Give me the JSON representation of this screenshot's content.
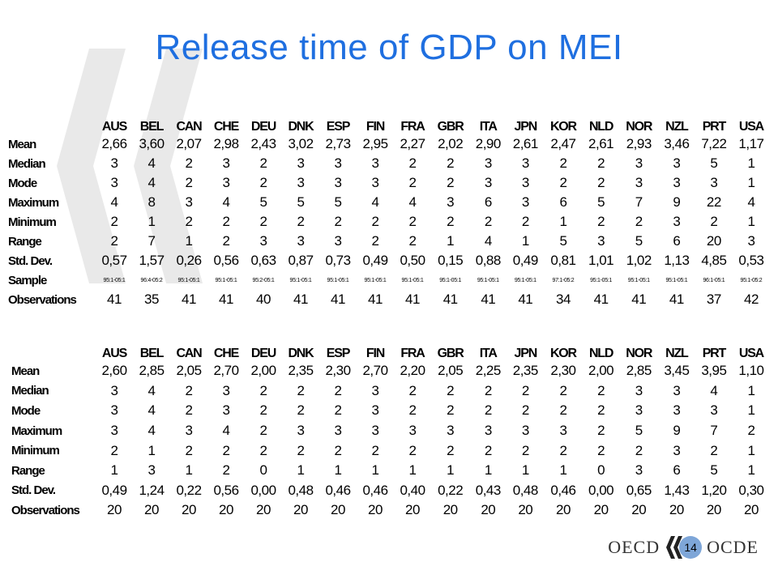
{
  "title": "Release time of GDP on MEI",
  "tables": [
    {
      "columns": [
        "AUS",
        "BEL",
        "CAN",
        "CHE",
        "DEU",
        "DNK",
        "ESP",
        "FIN",
        "FRA",
        "GBR",
        "ITA",
        "JPN",
        "KOR",
        "NLD",
        "NOR",
        "NZL",
        "PRT",
        "USA"
      ],
      "rows": [
        {
          "label": "Mean",
          "values": [
            "2,66",
            "3,60",
            "2,07",
            "2,98",
            "2,43",
            "3,02",
            "2,73",
            "2,95",
            "2,27",
            "2,02",
            "2,90",
            "2,61",
            "2,47",
            "2,61",
            "2,93",
            "3,46",
            "7,22",
            "1,17"
          ]
        },
        {
          "label": "Median",
          "values": [
            "3",
            "4",
            "2",
            "3",
            "2",
            "3",
            "3",
            "3",
            "2",
            "2",
            "3",
            "3",
            "2",
            "2",
            "3",
            "3",
            "5",
            "1"
          ]
        },
        {
          "label": "Mode",
          "values": [
            "3",
            "4",
            "2",
            "3",
            "2",
            "3",
            "3",
            "3",
            "2",
            "2",
            "3",
            "3",
            "2",
            "2",
            "3",
            "3",
            "3",
            "1"
          ]
        },
        {
          "label": "Maximum",
          "values": [
            "4",
            "8",
            "3",
            "4",
            "5",
            "5",
            "5",
            "4",
            "4",
            "3",
            "6",
            "3",
            "6",
            "5",
            "7",
            "9",
            "22",
            "4"
          ]
        },
        {
          "label": "Minimum",
          "values": [
            "2",
            "1",
            "2",
            "2",
            "2",
            "2",
            "2",
            "2",
            "2",
            "2",
            "2",
            "2",
            "1",
            "2",
            "2",
            "3",
            "2",
            "1"
          ]
        },
        {
          "label": "Range",
          "values": [
            "2",
            "7",
            "1",
            "2",
            "3",
            "3",
            "3",
            "2",
            "2",
            "1",
            "4",
            "1",
            "5",
            "3",
            "5",
            "6",
            "20",
            "3"
          ]
        },
        {
          "label": "Std. Dev.",
          "values": [
            "0,57",
            "1,57",
            "0,26",
            "0,56",
            "0,63",
            "0,87",
            "0,73",
            "0,49",
            "0,50",
            "0,15",
            "0,88",
            "0,49",
            "0,81",
            "1,01",
            "1,02",
            "1,13",
            "4,85",
            "0,53"
          ]
        },
        {
          "label": "Sample",
          "small": true,
          "values": [
            "95:1-05:1",
            "96:4-05:2",
            "95:1-05:1",
            "95:1-05:1",
            "95:2-05:1",
            "95:1-05:1",
            "95:1-05:1",
            "95:1-05:1",
            "95:1-05:1",
            "95:1-05:1",
            "95:1-05:1",
            "95:1-05:1",
            "97:1-05:2",
            "95:1-05:1",
            "95:1-05:1",
            "95:1-05:1",
            "96:1-05:1",
            "95:1-05:2"
          ]
        },
        {
          "label": "Observations",
          "values": [
            "41",
            "35",
            "41",
            "41",
            "40",
            "41",
            "41",
            "41",
            "41",
            "41",
            "41",
            "41",
            "34",
            "41",
            "41",
            "41",
            "37",
            "42"
          ]
        }
      ]
    },
    {
      "columns": [
        "AUS",
        "BEL",
        "CAN",
        "CHE",
        "DEU",
        "DNK",
        "ESP",
        "FIN",
        "FRA",
        "GBR",
        "ITA",
        "JPN",
        "KOR",
        "NLD",
        "NOR",
        "NZL",
        "PRT",
        "USA"
      ],
      "rows": [
        {
          "label": "Mean",
          "values": [
            "2,60",
            "2,85",
            "2,05",
            "2,70",
            "2,00",
            "2,35",
            "2,30",
            "2,70",
            "2,20",
            "2,05",
            "2,25",
            "2,35",
            "2,30",
            "2,00",
            "2,85",
            "3,45",
            "3,95",
            "1,10"
          ]
        },
        {
          "label": "Median",
          "values": [
            "3",
            "4",
            "2",
            "3",
            "2",
            "2",
            "2",
            "3",
            "2",
            "2",
            "2",
            "2",
            "2",
            "2",
            "3",
            "3",
            "4",
            "1"
          ]
        },
        {
          "label": "Mode",
          "values": [
            "3",
            "4",
            "2",
            "3",
            "2",
            "2",
            "2",
            "3",
            "2",
            "2",
            "2",
            "2",
            "2",
            "2",
            "3",
            "3",
            "3",
            "1"
          ]
        },
        {
          "label": "Maximum",
          "values": [
            "3",
            "4",
            "3",
            "4",
            "2",
            "3",
            "3",
            "3",
            "3",
            "3",
            "3",
            "3",
            "3",
            "2",
            "5",
            "9",
            "7",
            "2"
          ]
        },
        {
          "label": "Minimum",
          "values": [
            "2",
            "1",
            "2",
            "2",
            "2",
            "2",
            "2",
            "2",
            "2",
            "2",
            "2",
            "2",
            "2",
            "2",
            "2",
            "3",
            "2",
            "1"
          ]
        },
        {
          "label": "Range",
          "values": [
            "1",
            "3",
            "1",
            "2",
            "0",
            "1",
            "1",
            "1",
            "1",
            "1",
            "1",
            "1",
            "1",
            "0",
            "3",
            "6",
            "5",
            "1"
          ]
        },
        {
          "label": "Std. Dev.",
          "values": [
            "0,49",
            "1,24",
            "0,22",
            "0,56",
            "0,00",
            "0,48",
            "0,46",
            "0,46",
            "0,40",
            "0,22",
            "0,43",
            "0,48",
            "0,46",
            "0,00",
            "0,65",
            "1,43",
            "1,20",
            "0,30"
          ]
        },
        {
          "label": "Observations",
          "values": [
            "20",
            "20",
            "20",
            "20",
            "20",
            "20",
            "20",
            "20",
            "20",
            "20",
            "20",
            "20",
            "20",
            "20",
            "20",
            "20",
            "20",
            "20"
          ]
        }
      ]
    }
  ],
  "footer": {
    "left_text": "OECD",
    "right_text": "OCDE",
    "page_number": "14",
    "logo_icon": "oecd-chevron-logo-icon",
    "accent_color": "#1f6fe0",
    "badge_color": "#7ea6d8"
  }
}
